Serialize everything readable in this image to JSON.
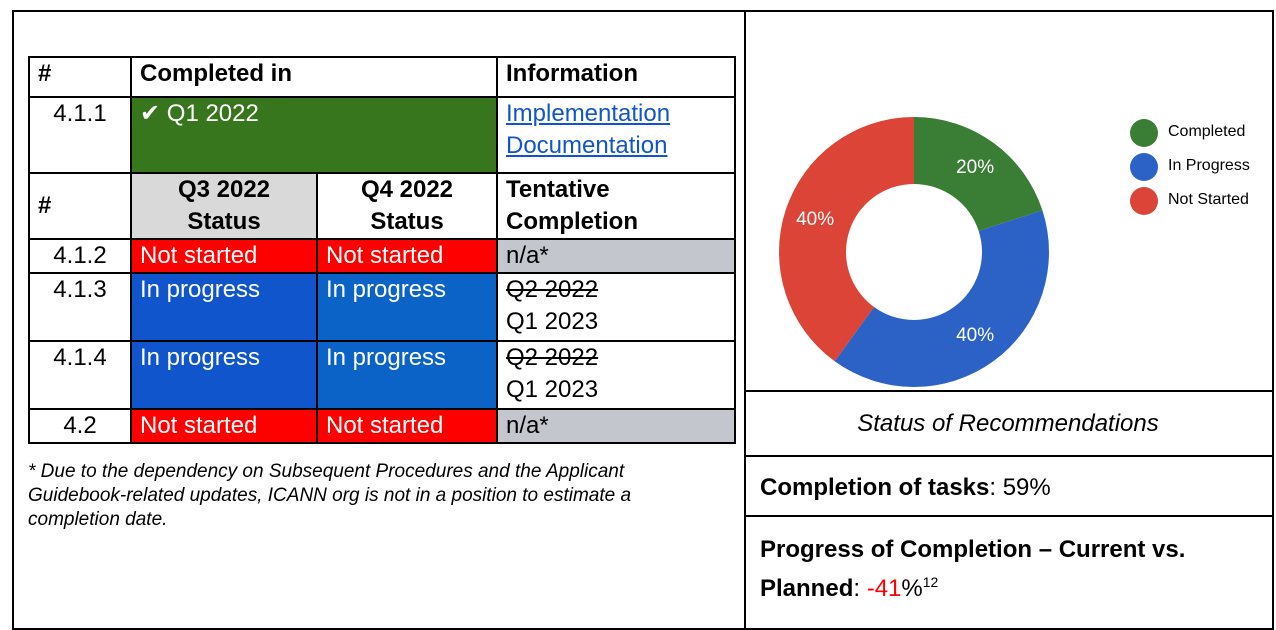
{
  "table": {
    "header1": [
      "#",
      "Completed in",
      "Information"
    ],
    "row1": {
      "id": "4.1.1",
      "completed": "✔ Q1 2022",
      "links": [
        "Implementation",
        "Documentation"
      ]
    },
    "header2": [
      "#",
      "Q3 2022 Status",
      "Q4 2022 Status",
      "Tentative Completion"
    ],
    "rows": [
      {
        "id": "4.1.2",
        "q3": "Not started",
        "q4": "Not started",
        "tentative": "n/a*"
      },
      {
        "id": "4.1.3",
        "q3": "In progress",
        "q4": "In progress",
        "struck": "Q2 2022",
        "tentative": "Q1 2023"
      },
      {
        "id": "4.1.4",
        "q3": "In progress",
        "q4": "In progress",
        "struck": "Q2 2022",
        "tentative": "Q1 2023"
      },
      {
        "id": "4.2",
        "q3": "Not started",
        "q4": "Not started",
        "tentative": "n/a*"
      }
    ]
  },
  "footnote": "* Due to the dependency on Subsequent Procedures and the Applicant Guidebook-related updates, ICANN org is not in a position to estimate a completion date.",
  "chart_data": {
    "type": "pie",
    "categories": [
      "Completed",
      "In Progress",
      "Not Started"
    ],
    "values": [
      20,
      40,
      40
    ],
    "value_labels": [
      "20%",
      "40%",
      "40%"
    ],
    "colors": [
      "#3a7d35",
      "#2c62c6",
      "#db4437"
    ]
  },
  "caption": "Status of Recommendations",
  "completion": {
    "label": "Completion of tasks",
    "text": ": 59%"
  },
  "progress": {
    "label": "Progress of Completion – Current vs. Planned",
    "sep": ": ",
    "value": "-41",
    "unit": "%",
    "sup": "12"
  }
}
